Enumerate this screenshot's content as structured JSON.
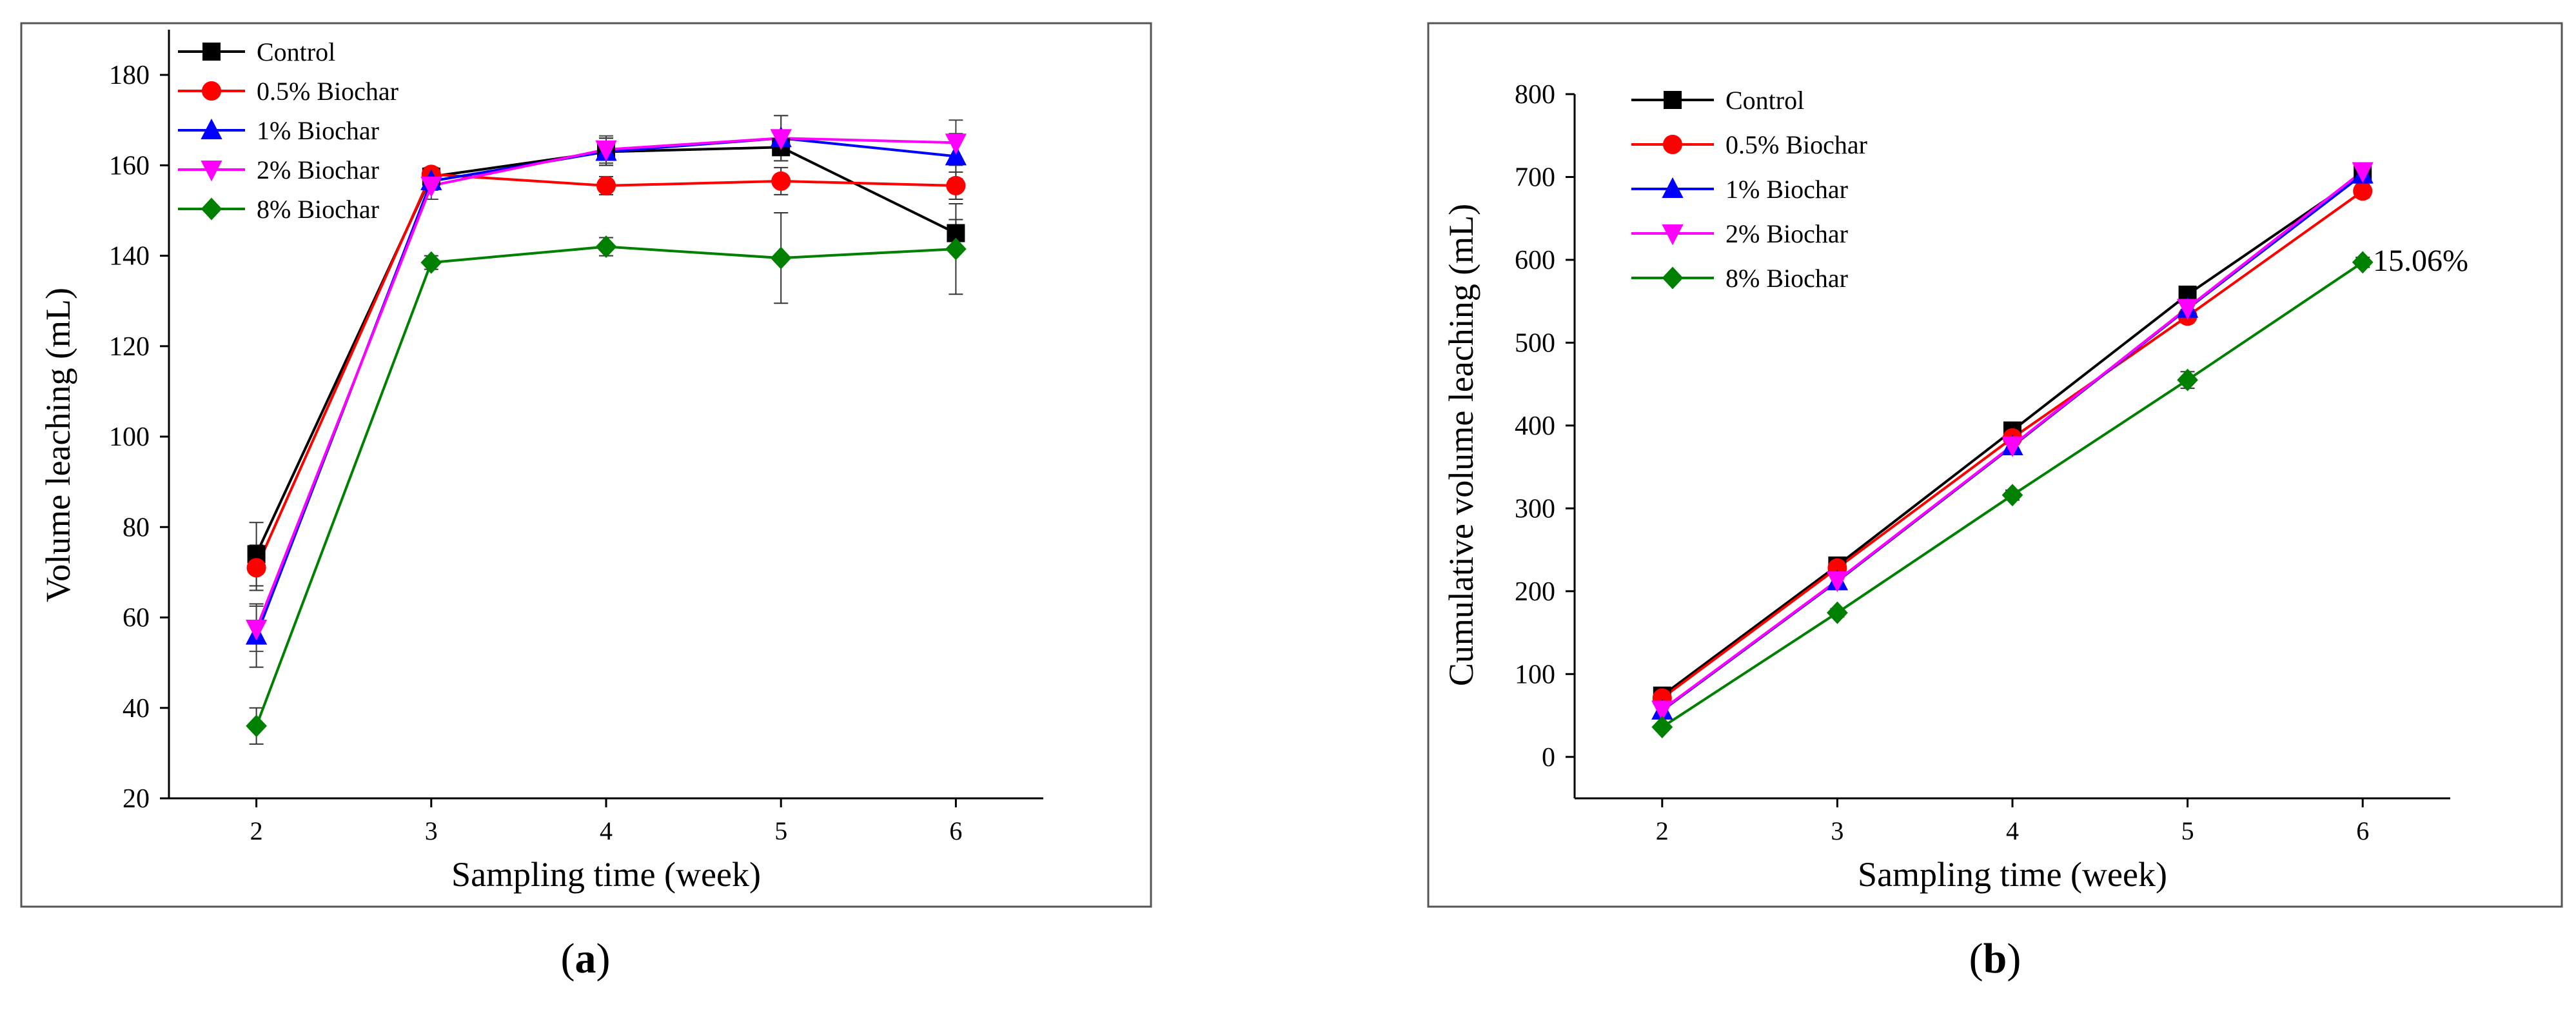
{
  "chart_data": [
    {
      "type": "line",
      "panel_label": "a",
      "xlabel": "Sampling time (week)",
      "ylabel": "Volume leaching (mL)",
      "xlim": [
        1.5,
        6.5
      ],
      "ylim": [
        20,
        190
      ],
      "x_ticks": [
        2,
        3,
        4,
        5,
        6
      ],
      "y_ticks": [
        20,
        40,
        60,
        80,
        100,
        120,
        140,
        160,
        180
      ],
      "grid": false,
      "legend_position": "top-left",
      "x": [
        2,
        3,
        4,
        5,
        6
      ],
      "series": [
        {
          "name": "Control",
          "color": "#000000",
          "marker": "square",
          "values": [
            74,
            157.5,
            163,
            164,
            145
          ],
          "errors": [
            7,
            2,
            3,
            3,
            3
          ]
        },
        {
          "name": "0.5% Biochar",
          "color": "#ff0000",
          "marker": "circle",
          "values": [
            71,
            158,
            155.5,
            156.5,
            155.5
          ],
          "errors": [
            5,
            1.5,
            2,
            3,
            3
          ]
        },
        {
          "name": "1% Biochar",
          "color": "#0000ff",
          "marker": "triangle-up",
          "values": [
            56,
            156.5,
            163,
            166,
            162
          ],
          "errors": [
            7,
            2,
            3,
            5,
            5
          ]
        },
        {
          "name": "2% Biochar",
          "color": "#ff00ff",
          "marker": "triangle-down",
          "values": [
            57.5,
            155.5,
            163.5,
            166,
            165
          ],
          "errors": [
            5,
            3,
            3,
            5,
            5
          ]
        },
        {
          "name": "8% Biochar",
          "color": "#008000",
          "marker": "diamond",
          "values": [
            36,
            138.5,
            142,
            139.5,
            141.5
          ],
          "errors": [
            4,
            1.5,
            2,
            10,
            10
          ]
        }
      ]
    },
    {
      "type": "line",
      "panel_label": "b",
      "xlabel": "Sampling time (week)",
      "ylabel": "Cumulative volume leaching (mL)",
      "xlim": [
        1.5,
        6.5
      ],
      "ylim": [
        -50,
        800
      ],
      "x_ticks": [
        2,
        3,
        4,
        5,
        6
      ],
      "y_ticks": [
        0,
        100,
        200,
        300,
        400,
        500,
        600,
        700,
        800
      ],
      "grid": false,
      "legend_position": "top-left",
      "x": [
        2,
        3,
        4,
        5,
        6
      ],
      "annotation": {
        "text": "15.06%",
        "x": 6,
        "y": 597
      },
      "series": [
        {
          "name": "Control",
          "color": "#000000",
          "marker": "square",
          "values": [
            74,
            231,
            394,
            558,
            703
          ],
          "errors": [
            7,
            6,
            8,
            8,
            8
          ]
        },
        {
          "name": "0.5% Biochar",
          "color": "#ff0000",
          "marker": "circle",
          "values": [
            71,
            228,
            385,
            532,
            683
          ],
          "errors": [
            5,
            5,
            8,
            8,
            8
          ]
        },
        {
          "name": "1% Biochar",
          "color": "#0000ff",
          "marker": "triangle-up",
          "values": [
            56,
            212,
            375,
            541,
            703
          ],
          "errors": [
            7,
            6,
            8,
            8,
            8
          ]
        },
        {
          "name": "2% Biochar",
          "color": "#ff00ff",
          "marker": "triangle-down",
          "values": [
            57,
            213,
            376,
            542,
            707
          ],
          "errors": [
            5,
            6,
            8,
            8,
            8
          ]
        },
        {
          "name": "8% Biochar",
          "color": "#008000",
          "marker": "diamond",
          "values": [
            36,
            174,
            316,
            455,
            597
          ],
          "errors": [
            4,
            5,
            6,
            10,
            6
          ]
        }
      ]
    }
  ]
}
